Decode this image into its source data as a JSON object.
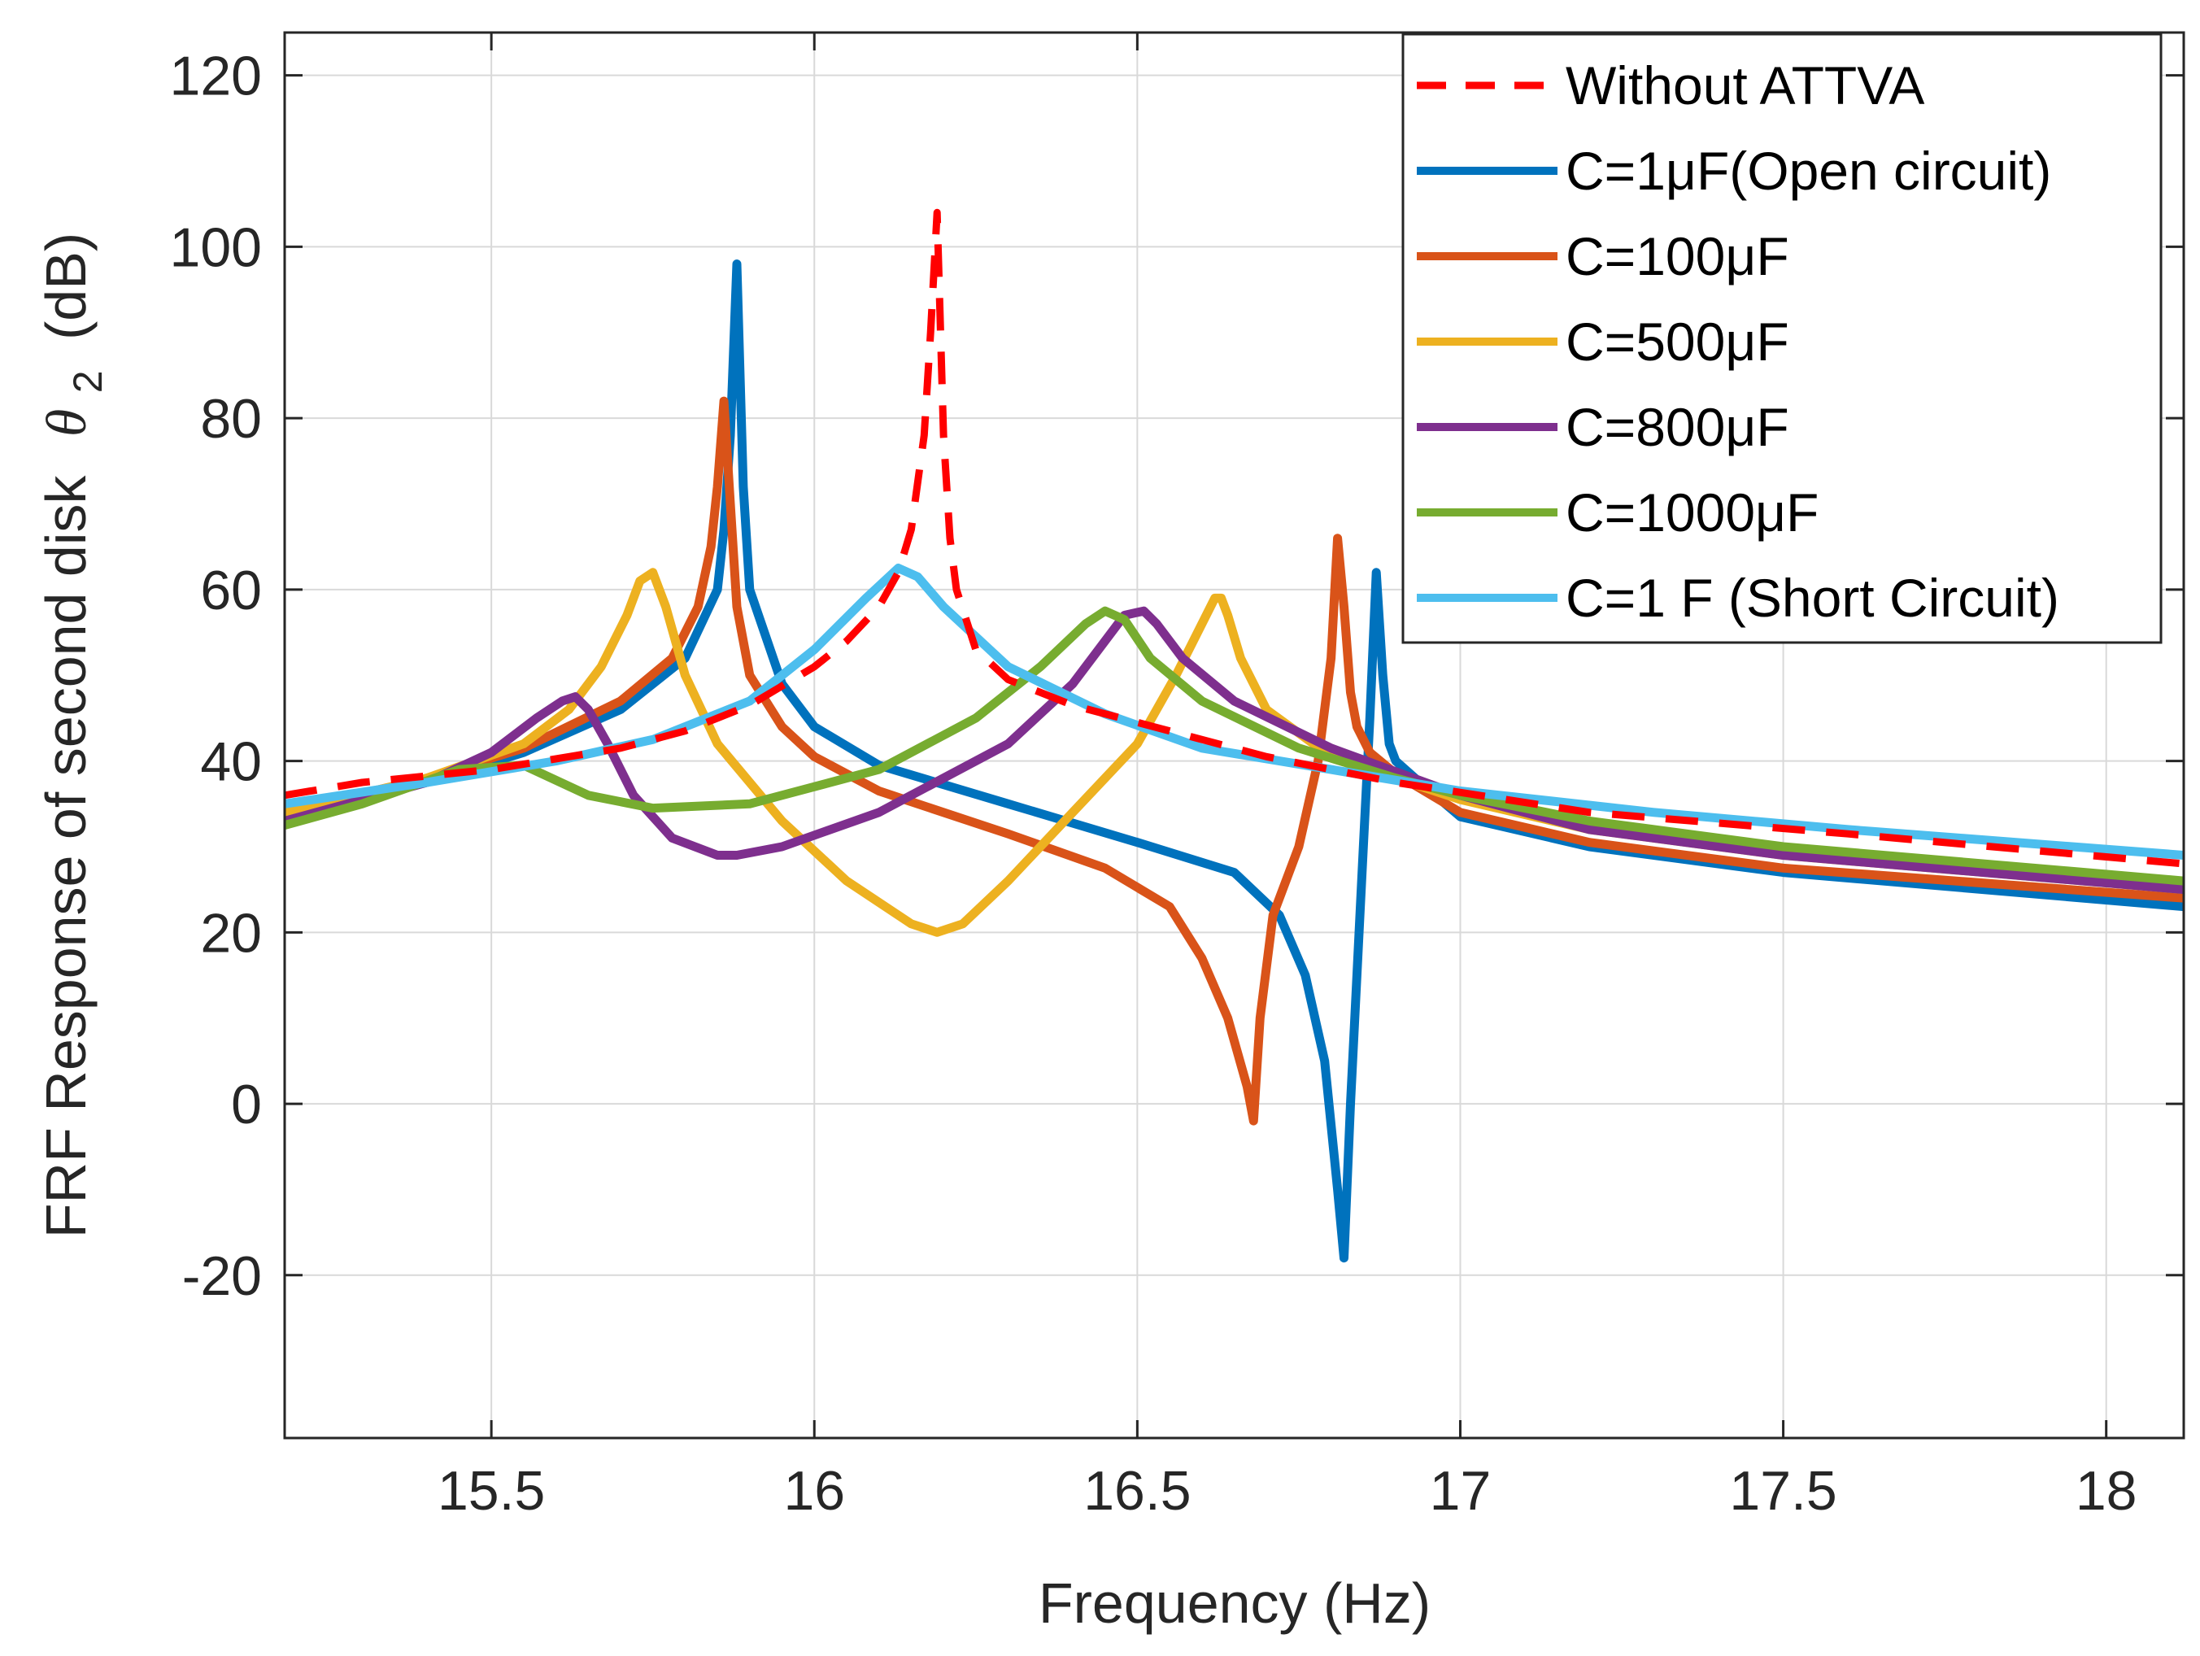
{
  "chart_data": {
    "type": "line",
    "title": "",
    "xlabel": "Frequency (Hz)",
    "ylabel": {
      "prefix": "FRF Response of second disk",
      "symbol": "θ",
      "subscript": "2",
      "suffix": "(dB)"
    },
    "xlim": [
      15.18,
      18.12
    ],
    "ylim": [
      -39,
      125
    ],
    "xticks": [
      15.5,
      16,
      16.5,
      17,
      17.5,
      18
    ],
    "xtick_labels": [
      "15.5",
      "16",
      "16.5",
      "17",
      "17.5",
      "18"
    ],
    "yticks": [
      -20,
      0,
      20,
      40,
      60,
      80,
      100,
      120
    ],
    "ytick_labels": [
      "-20",
      "0",
      "20",
      "40",
      "60",
      "80",
      "100",
      "120"
    ],
    "grid": true,
    "legend_position": "top-right",
    "series": [
      {
        "name": "Without ATTVA",
        "color": "#ff0000",
        "dash": true,
        "x": [
          15.18,
          15.3,
          15.5,
          15.7,
          15.8,
          15.9,
          16.0,
          16.05,
          16.1,
          16.13,
          16.15,
          16.17,
          16.18,
          16.19,
          16.2,
          16.21,
          16.22,
          16.25,
          16.3,
          16.4,
          16.5,
          16.7,
          16.9,
          17.2,
          17.6,
          18.12
        ],
        "y": [
          36,
          37.5,
          39,
          41.5,
          43.5,
          46.5,
          51,
          54,
          58,
          62,
          67,
          78,
          90,
          104,
          78,
          66,
          60,
          53,
          49.5,
          46.5,
          44.5,
          40.5,
          37.5,
          34,
          31.5,
          28
        ]
      },
      {
        "name": "C=1μF(Open circuit)",
        "color": "#0072bd",
        "dash": false,
        "x": [
          15.18,
          15.4,
          15.55,
          15.7,
          15.8,
          15.85,
          15.86,
          15.87,
          15.88,
          15.89,
          15.9,
          15.95,
          16.0,
          16.1,
          16.3,
          16.5,
          16.65,
          16.72,
          16.76,
          16.79,
          16.81,
          16.82,
          16.83,
          16.85,
          16.86,
          16.87,
          16.88,
          16.89,
          16.9,
          16.93,
          17.0,
          17.2,
          17.5,
          18.12
        ],
        "y": [
          33.5,
          37.5,
          41,
          46,
          52,
          60,
          67,
          78,
          98,
          72,
          60,
          49,
          44,
          39.5,
          35,
          30.5,
          27,
          22,
          15,
          5,
          -10,
          -18,
          0,
          30,
          45,
          62,
          50,
          42,
          40,
          38,
          33.5,
          30,
          27,
          23
        ]
      },
      {
        "name": "C=100μF",
        "color": "#d95319",
        "dash": false,
        "x": [
          15.18,
          15.4,
          15.55,
          15.7,
          15.78,
          15.82,
          15.84,
          15.85,
          15.86,
          15.87,
          15.88,
          15.9,
          15.95,
          16.0,
          16.1,
          16.3,
          16.45,
          16.55,
          16.6,
          16.64,
          16.67,
          16.68,
          16.69,
          16.71,
          16.75,
          16.78,
          16.8,
          16.81,
          16.82,
          16.83,
          16.84,
          16.86,
          16.9,
          17.0,
          17.2,
          17.5,
          18.12
        ],
        "y": [
          34,
          38,
          41.5,
          47,
          52,
          58,
          65,
          72,
          82,
          70,
          58,
          50,
          44,
          40.5,
          36.5,
          31.5,
          27.5,
          23,
          17,
          10,
          2,
          -2,
          10,
          22,
          30,
          40,
          52,
          66,
          58,
          48,
          44,
          41,
          38.5,
          34,
          30.5,
          27.5,
          24
        ]
      },
      {
        "name": "C=500μF",
        "color": "#edb120",
        "dash": false,
        "x": [
          15.18,
          15.4,
          15.55,
          15.62,
          15.67,
          15.71,
          15.73,
          15.75,
          15.77,
          15.8,
          15.85,
          15.95,
          16.05,
          16.15,
          16.19,
          16.23,
          16.3,
          16.4,
          16.5,
          16.56,
          16.6,
          16.62,
          16.63,
          16.64,
          16.66,
          16.7,
          16.8,
          16.9,
          17.0,
          17.2,
          17.5,
          18.12
        ],
        "y": [
          34,
          38,
          42,
          46,
          51,
          57,
          61,
          62,
          58,
          50,
          42,
          33,
          26,
          21,
          20,
          21,
          26,
          34,
          42,
          50,
          56,
          59,
          59,
          57,
          52,
          46,
          40.5,
          38,
          35.5,
          32,
          29,
          25
        ]
      },
      {
        "name": "C=800μF",
        "color": "#7e2f8e",
        "dash": false,
        "x": [
          15.18,
          15.4,
          15.5,
          15.57,
          15.61,
          15.63,
          15.65,
          15.68,
          15.72,
          15.78,
          15.85,
          15.88,
          15.95,
          16.1,
          16.3,
          16.4,
          16.45,
          16.48,
          16.51,
          16.53,
          16.57,
          16.65,
          16.8,
          17.0,
          17.2,
          17.5,
          18.12
        ],
        "y": [
          33,
          37.5,
          41,
          45,
          47,
          47.5,
          46,
          42,
          36,
          31,
          29,
          29,
          30,
          34,
          42,
          49,
          54,
          57,
          57.5,
          56,
          52,
          47,
          41.5,
          36,
          32,
          29,
          25
        ]
      },
      {
        "name": "C=1000μF",
        "color": "#77ac30",
        "dash": false,
        "x": [
          15.18,
          15.3,
          15.45,
          15.55,
          15.65,
          15.75,
          15.9,
          16.1,
          16.25,
          16.35,
          16.42,
          16.45,
          16.48,
          16.52,
          16.6,
          16.75,
          16.9,
          17.0,
          17.2,
          17.5,
          18.12
        ],
        "y": [
          32.5,
          35,
          39,
          39.5,
          36,
          34.5,
          35,
          39,
          45,
          51,
          56,
          57.5,
          56.5,
          52,
          47,
          41.5,
          38,
          36,
          33,
          30,
          26
        ]
      },
      {
        "name": "C=1 F (Short Circuit)",
        "color": "#4dbeee",
        "dash": false,
        "x": [
          15.18,
          15.4,
          15.6,
          15.75,
          15.9,
          16.0,
          16.08,
          16.13,
          16.16,
          16.2,
          16.3,
          16.45,
          16.6,
          16.8,
          17.0,
          17.3,
          17.6,
          18.12
        ],
        "y": [
          35,
          37.5,
          40,
          42.5,
          47,
          53,
          59,
          62.5,
          61.5,
          58,
          51,
          45.5,
          41.5,
          39,
          36.5,
          34,
          32,
          29
        ]
      }
    ]
  }
}
